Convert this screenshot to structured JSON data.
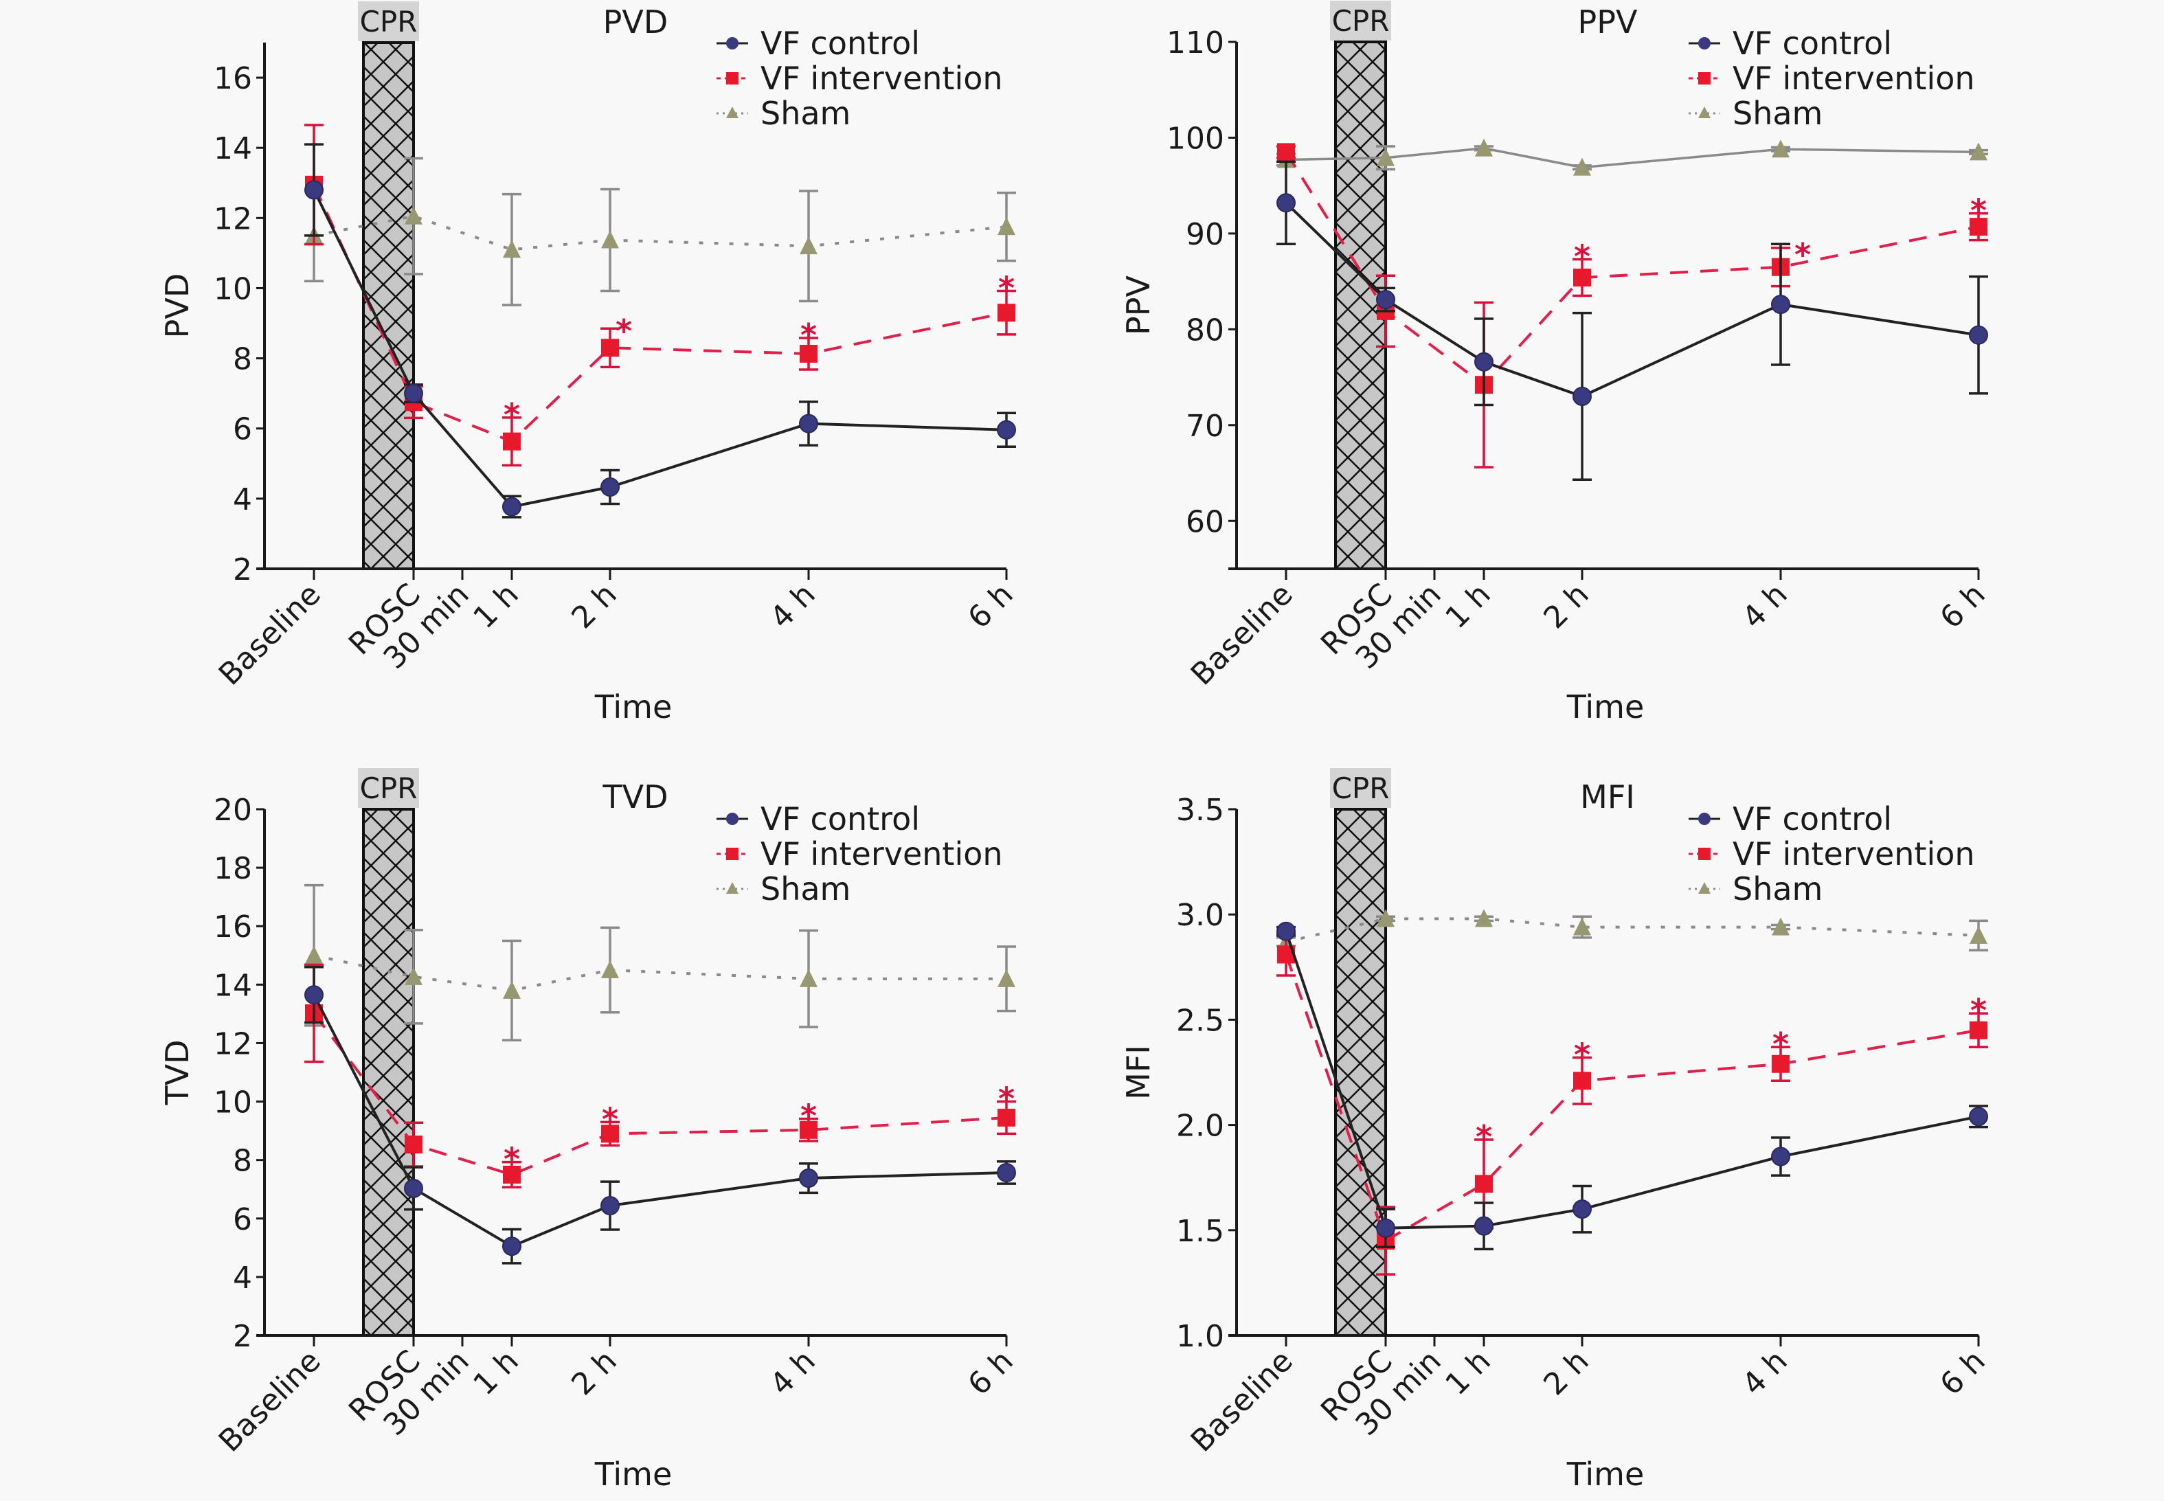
{
  "figure": {
    "time_points": [
      "Baseline",
      "ROSC",
      "30 min",
      "1 h",
      "2 h",
      "4 h",
      "6 h"
    ],
    "plotted_time_points": [
      "Baseline",
      "ROSC",
      "1 h",
      "2 h",
      "4 h",
      "6 h"
    ],
    "cpr_label": "CPR",
    "x_axis_title": "Time",
    "legend": [
      {
        "name": "VF control",
        "marker": "circle",
        "line": "solid",
        "color": "#3a3a80"
      },
      {
        "name": "VF intervention",
        "marker": "square",
        "line": "dashed",
        "color": "#e8192c"
      },
      {
        "name": "Sham",
        "marker": "triangle",
        "line": "dotted",
        "color": "#979872"
      }
    ],
    "significance_marker": "*"
  },
  "chart_data": [
    {
      "type": "line",
      "title": "PVD",
      "xlabel": "Time",
      "ylabel": "PVD",
      "ylim": [
        2,
        17
      ],
      "yticks": [
        2,
        4,
        6,
        8,
        10,
        12,
        14,
        16
      ],
      "ytick_labels": [
        "2",
        "4",
        "6",
        "8",
        "10",
        "12",
        "14",
        "16"
      ],
      "categories": [
        "Baseline",
        "ROSC",
        "30 min",
        "1 h",
        "2 h",
        "4 h",
        "6 h"
      ],
      "x": [
        "Baseline",
        "ROSC",
        "1 h",
        "2 h",
        "4 h",
        "6 h"
      ],
      "legend_position": "top-right",
      "grid": false,
      "sham_line": "dotted",
      "series": [
        {
          "name": "VF control",
          "values": [
            12.8,
            7.0,
            3.77,
            4.33,
            6.14,
            5.96
          ],
          "error": [
            1.3,
            0.25,
            0.3,
            0.48,
            0.62,
            0.48
          ],
          "significant": [
            false,
            false,
            false,
            false,
            false,
            false
          ]
        },
        {
          "name": "VF intervention",
          "values": [
            12.95,
            6.75,
            5.63,
            8.3,
            8.13,
            9.3
          ],
          "error": [
            1.7,
            0.45,
            0.68,
            0.55,
            0.45,
            0.62
          ],
          "significant": [
            false,
            false,
            true,
            true,
            true,
            true
          ]
        },
        {
          "name": "Sham",
          "values": [
            11.5,
            12.05,
            11.1,
            11.37,
            11.2,
            11.75
          ],
          "error": [
            1.3,
            1.65,
            1.58,
            1.45,
            1.57,
            0.97
          ],
          "significant": [
            false,
            false,
            false,
            false,
            false,
            false
          ]
        }
      ]
    },
    {
      "type": "line",
      "title": "PPV",
      "xlabel": "Time",
      "ylabel": "PPV",
      "ylim": [
        55,
        110
      ],
      "yticks": [
        60,
        70,
        80,
        90,
        100,
        110
      ],
      "ytick_labels": [
        "60",
        "70",
        "80",
        "90",
        "100",
        "110"
      ],
      "categories": [
        "Baseline",
        "ROSC",
        "30 min",
        "1 h",
        "2 h",
        "4 h",
        "6 h"
      ],
      "x": [
        "Baseline",
        "ROSC",
        "1 h",
        "2 h",
        "4 h",
        "6 h"
      ],
      "legend_position": "top-right",
      "grid": false,
      "sham_line": "solid",
      "series": [
        {
          "name": "VF control",
          "values": [
            93.2,
            83.1,
            76.6,
            73.0,
            82.6,
            79.4
          ],
          "error": [
            4.3,
            1.2,
            4.5,
            8.7,
            6.3,
            6.1
          ],
          "significant": [
            false,
            false,
            false,
            false,
            false,
            false
          ]
        },
        {
          "name": "VF intervention",
          "values": [
            98.5,
            81.9,
            74.2,
            85.4,
            86.5,
            90.7
          ],
          "error": [
            0.6,
            3.7,
            8.6,
            1.9,
            2.0,
            1.4
          ],
          "significant": [
            false,
            false,
            false,
            true,
            true,
            true
          ]
        },
        {
          "name": "Sham",
          "values": [
            97.7,
            97.9,
            98.9,
            96.9,
            98.8,
            98.5
          ],
          "error": [
            0.6,
            1.2,
            0.2,
            0.2,
            0.2,
            0.2
          ],
          "significant": [
            false,
            false,
            false,
            false,
            false,
            false
          ]
        }
      ]
    },
    {
      "type": "line",
      "title": "TVD",
      "xlabel": "Time",
      "ylabel": "TVD",
      "ylim": [
        2,
        20
      ],
      "yticks": [
        2,
        4,
        6,
        8,
        10,
        12,
        14,
        16,
        18,
        20
      ],
      "ytick_labels": [
        "2",
        "4",
        "6",
        "8",
        "10",
        "12",
        "14",
        "16",
        "18",
        "20"
      ],
      "categories": [
        "Baseline",
        "ROSC",
        "30 min",
        "1 h",
        "2 h",
        "4 h",
        "6 h"
      ],
      "x": [
        "Baseline",
        "ROSC",
        "1 h",
        "2 h",
        "4 h",
        "6 h"
      ],
      "legend_position": "top-right",
      "grid": false,
      "sham_line": "dotted",
      "series": [
        {
          "name": "VF control",
          "values": [
            13.65,
            7.03,
            5.05,
            6.44,
            7.38,
            7.57
          ],
          "error": [
            0.95,
            0.72,
            0.58,
            0.82,
            0.5,
            0.38
          ],
          "significant": [
            false,
            false,
            false,
            false,
            false,
            false
          ]
        },
        {
          "name": "VF intervention",
          "values": [
            13.02,
            8.53,
            7.5,
            8.9,
            9.03,
            9.45
          ],
          "error": [
            1.66,
            0.75,
            0.43,
            0.4,
            0.38,
            0.55
          ],
          "significant": [
            false,
            false,
            true,
            true,
            true,
            true
          ]
        },
        {
          "name": "Sham",
          "values": [
            15.0,
            14.27,
            13.8,
            14.5,
            14.2,
            14.2
          ],
          "error": [
            2.4,
            1.6,
            1.7,
            1.45,
            1.65,
            1.1
          ],
          "significant": [
            false,
            false,
            false,
            false,
            false,
            false
          ]
        }
      ]
    },
    {
      "type": "line",
      "title": "MFI",
      "xlabel": "Time",
      "ylabel": "MFI",
      "ylim": [
        1.0,
        3.5
      ],
      "yticks": [
        1.0,
        1.5,
        2.0,
        2.5,
        3.0,
        3.5
      ],
      "ytick_labels": [
        "1.0",
        "1.5",
        "2.0",
        "2.5",
        "3.0",
        "3.5"
      ],
      "categories": [
        "Baseline",
        "ROSC",
        "30 min",
        "1 h",
        "2 h",
        "4 h",
        "6 h"
      ],
      "x": [
        "Baseline",
        "ROSC",
        "1 h",
        "2 h",
        "4 h",
        "6 h"
      ],
      "legend_position": "top-right",
      "grid": false,
      "sham_line": "dotted",
      "series": [
        {
          "name": "VF control",
          "values": [
            2.92,
            1.51,
            1.52,
            1.6,
            1.85,
            2.04
          ],
          "error": [
            0.02,
            0.09,
            0.11,
            0.11,
            0.09,
            0.05
          ],
          "significant": [
            false,
            false,
            false,
            false,
            false,
            false
          ]
        },
        {
          "name": "VF intervention",
          "values": [
            2.81,
            1.45,
            1.72,
            2.21,
            2.29,
            2.45
          ],
          "error": [
            0.1,
            0.16,
            0.21,
            0.11,
            0.08,
            0.08
          ],
          "significant": [
            false,
            false,
            true,
            true,
            true,
            true
          ]
        },
        {
          "name": "Sham",
          "values": [
            2.87,
            2.98,
            2.98,
            2.94,
            2.94,
            2.9
          ],
          "error": [
            0.02,
            0.01,
            0.01,
            0.05,
            0.01,
            0.07
          ],
          "significant": [
            false,
            false,
            false,
            false,
            false,
            false
          ]
        }
      ]
    }
  ]
}
